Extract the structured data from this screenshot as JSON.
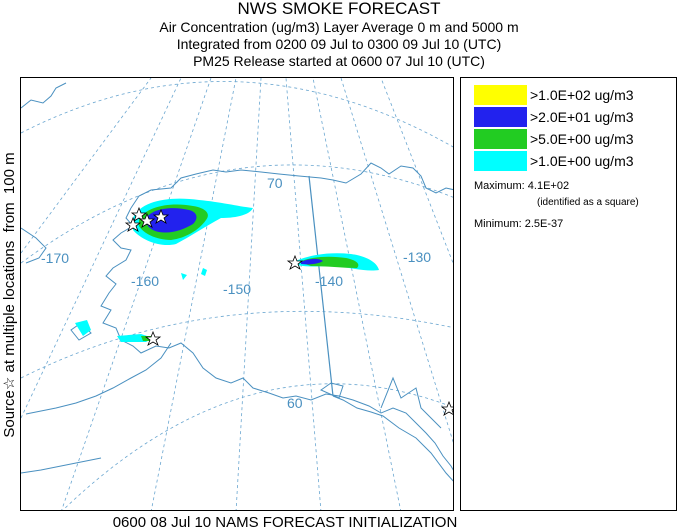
{
  "header": {
    "title": "NWS SMOKE FORECAST",
    "line1": "Air Concentration (ug/m3) Layer Average    0 m and  5000 m",
    "line2": "Integrated from 0200 09 Jul to 0300 09 Jul 10 (UTC)",
    "line3": "PM25 Release started at 0600 07 Jul 10 (UTC)"
  },
  "side_label": "Source☆ at multiple locations  from  100 m",
  "footer": "0600 08 Jul 10 NAMS FORECAST INITIALIZATION",
  "map": {
    "longitude_labels": [
      "-170",
      "-160",
      "-150",
      "-140",
      "-130"
    ],
    "latitude_labels": [
      "70",
      "60"
    ],
    "colors": {
      "land_line": "#4a90c0",
      "grid_line": "#4a90c0",
      "border_line": "#4a90c0"
    }
  },
  "legend": {
    "items": [
      {
        "label": ">1.0E+02 ug/m3",
        "color": "#ffff00"
      },
      {
        "label": ">2.0E+01 ug/m3",
        "color": "#2222ee"
      },
      {
        "label": ">5.0E+00 ug/m3",
        "color": "#22cc22"
      },
      {
        "label": ">1.0E+00 ug/m3",
        "color": "#00ffff"
      }
    ],
    "maximum": "Maximum: 4.1E+02",
    "maximum_note": "(identified as a square)",
    "minimum": "Minimum: 2.5E-37"
  }
}
